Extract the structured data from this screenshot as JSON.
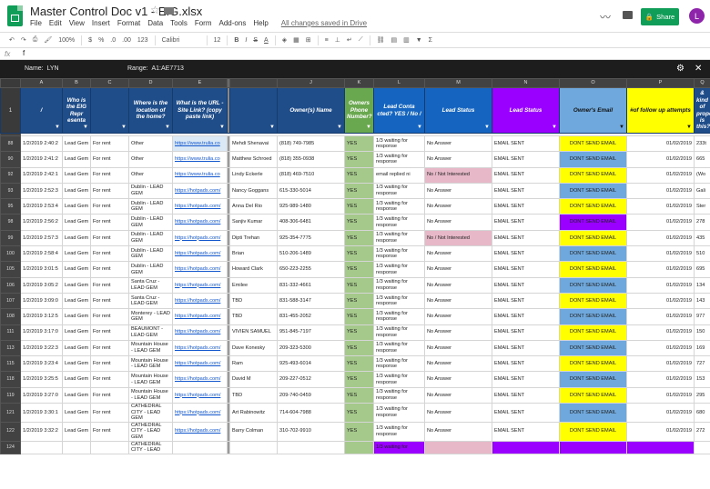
{
  "app": {
    "doc_title": "Master Control Doc v1 - EIG.xlsx",
    "menus": [
      "File",
      "Edit",
      "View",
      "Insert",
      "Format",
      "Data",
      "Tools",
      "Form",
      "Add-ons",
      "Help"
    ],
    "saved_status": "All changes saved in Drive",
    "share_label": "Share",
    "avatar_letter": "L",
    "brand_color": "#0f9d58"
  },
  "toolbar": {
    "zoom": "100%",
    "currency": "$",
    "percent": "%",
    "decimals_dec": ".0",
    "decimals_inc": ".00",
    "number_format": "123",
    "font": "Calibri",
    "font_size": "12",
    "bold": "B",
    "italic": "I",
    "strike": "S",
    "text_color": "A",
    "sum": "Σ"
  },
  "formula_bar": {
    "label": "fx",
    "value": "f"
  },
  "filter_bar": {
    "name_label": "Name:",
    "name_value": "LYN",
    "range_label": "Range:",
    "range_value": "A1:AE7713"
  },
  "columns": [
    "A",
    "B",
    "C",
    "D",
    "E",
    "",
    "J",
    "K",
    "L",
    "M",
    "N",
    "O",
    "P",
    "Q",
    ""
  ],
  "header_row": {
    "row_number": "1",
    "cells": [
      "/",
      "Who is the EIG Repr esenta",
      "",
      "Where is the location of the home?",
      "What is the URL - Site Link? (copy paste link)",
      "",
      "Owner(s) Name",
      "Owners Phone Number?",
      "Lead Conta cted? YES / No /",
      "Lead Status",
      "Lead Status",
      "Owner's Email",
      "#of follow up attempts",
      "& kind of property is this?",
      ""
    ]
  },
  "rows": [
    {
      "n": "88",
      "a": "1/2/2019 2:40:2",
      "b": "Lead Gem",
      "c": "For rent",
      "d": "Other",
      "e": "https://www.trulia.co",
      "j": "Mehdi Shenavai",
      "k": "(818) 749-7985",
      "l": "YES",
      "m": "1/3 waiting for response",
      "n2": "No Answer",
      "o": "EMAIL SENT",
      "p": "DONT SEND EMAIL",
      "q": "01/02/2019",
      "r": "233t"
    },
    {
      "n": "90",
      "a": "1/2/2019 2:41:2",
      "b": "Lead Gem",
      "c": "For rent",
      "d": "Other",
      "e": "https://www.trulia.co",
      "j": "Matthew Schroed",
      "k": "(818) 355-0938",
      "l": "YES",
      "m": "1/3 waiting for response",
      "n2": "No Answer",
      "o": "EMAIL SENT",
      "p": "DONT SEND EMAIL",
      "q": "01/02/2019",
      "r": "665"
    },
    {
      "n": "92",
      "a": "1/2/2019 2:42:1",
      "b": "Lead Gem",
      "c": "For rent",
      "d": "Other",
      "e": "https://www.trulia.co",
      "j": "Lindy Eckerle",
      "k": "(818) 469-7510",
      "l": "YES",
      "m": "email replied ni",
      "n2": "No / Not Interested",
      "o": "EMAIL SENT",
      "p": "DONT SEND EMAIL",
      "q": "01/02/2019",
      "r": "(Wo"
    },
    {
      "n": "93",
      "a": "1/2/2019 2:52:3",
      "b": "Lead Gem",
      "c": "For rent",
      "d": "Dublin - LEAD GEM",
      "e": "https://hotpads.com/",
      "j": "Nancy Goggans",
      "k": "615-330-5014",
      "l": "YES",
      "m": "1/3 waiting for response",
      "n2": "No Answer",
      "o": "EMAIL SENT",
      "p": "DONT SEND EMAIL",
      "q": "01/02/2019",
      "r": "Gali"
    },
    {
      "n": "95",
      "a": "1/2/2019 2:53:4",
      "b": "Lead Gem",
      "c": "For rent",
      "d": "Dublin - LEAD GEM",
      "e": "https://hotpads.com/",
      "j": "Anna Del Rio",
      "k": "925-989-1480",
      "l": "YES",
      "m": "1/3 waiting for response",
      "n2": "No Answer",
      "o": "EMAIL SENT",
      "p": "DONT SEND EMAIL",
      "q": "01/02/2019",
      "r": "Ster"
    },
    {
      "n": "98",
      "a": "1/2/2019 2:56:2",
      "b": "Lead Gem",
      "c": "For rent",
      "d": "Dublin - LEAD GEM",
      "e": "https://hotpads.com/",
      "j": "Sanjiv Kumar",
      "k": "408-306-6481",
      "l": "YES",
      "m": "1/3 waiting for response",
      "n2": "No Answer",
      "o": "EMAIL SENT",
      "p": "DONT SEND EMAIL",
      "q": "01/02/2019",
      "r": "278"
    },
    {
      "n": "99",
      "a": "1/2/2019 2:57:3",
      "b": "Lead Gem",
      "c": "For rent",
      "d": "Dublin - LEAD GEM",
      "e": "https://hotpads.com/",
      "j": "Dipti Trehan",
      "k": "925-354-7775",
      "l": "YES",
      "m": "1/3 waiting for response",
      "n2": "No / Not Interested",
      "o": "EMAIL SENT",
      "p": "DONT SEND EMAIL",
      "q": "01/02/2019",
      "r": "435"
    },
    {
      "n": "100",
      "a": "1/2/2019 2:58:4",
      "b": "Lead Gem",
      "c": "For rent",
      "d": "Dublin - LEAD GEM",
      "e": "https://hotpads.com/",
      "j": "Brian",
      "k": "510-206-1489",
      "l": "YES",
      "m": "1/3 waiting for response",
      "n2": "No Answer",
      "o": "EMAIL SENT",
      "p": "DONT SEND EMAIL",
      "q": "01/02/2019",
      "r": "510"
    },
    {
      "n": "105",
      "a": "1/2/2019 3:01:5",
      "b": "Lead Gem",
      "c": "For rent",
      "d": "Dublin - LEAD GEM",
      "e": "https://hotpads.com/",
      "j": "Howard Clark",
      "k": "650-223-2255",
      "l": "YES",
      "m": "1/3 waiting for response",
      "n2": "No Answer",
      "o": "EMAIL SENT",
      "p": "DONT SEND EMAIL",
      "q": "01/02/2019",
      "r": "695"
    },
    {
      "n": "106",
      "a": "1/2/2019 3:05:2",
      "b": "Lead Gem",
      "c": "For rent",
      "d": "Santa Cruz - LEAD GEM",
      "e": "https://hotpads.com/",
      "j": "Emilee",
      "k": "831-332-4661",
      "l": "YES",
      "m": "1/3 waiting for response",
      "n2": "No Answer",
      "o": "EMAIL SENT",
      "p": "DONT SEND EMAIL",
      "q": "01/02/2019",
      "r": "134"
    },
    {
      "n": "107",
      "a": "1/2/2019 3:09:0",
      "b": "Lead Gem",
      "c": "For rent",
      "d": "Santa Cruz - LEAD GEM",
      "e": "https://hotpads.com/",
      "j": "TBD",
      "k": "831-588-3147",
      "l": "YES",
      "m": "1/3 waiting for response",
      "n2": "No Answer",
      "o": "EMAIL SENT",
      "p": "DONT SEND EMAIL",
      "q": "01/02/2019",
      "r": "143"
    },
    {
      "n": "108",
      "a": "1/2/2019 3:12:5",
      "b": "Lead Gem",
      "c": "For rent",
      "d": "Monterey - LEAD GEM",
      "e": "https://hotpads.com/",
      "j": "TBD",
      "k": "831-455-2052",
      "l": "YES",
      "m": "1/3 waiting for response",
      "n2": "No Answer",
      "o": "EMAIL SENT",
      "p": "DONT SEND EMAIL",
      "q": "01/02/2019",
      "r": "977"
    },
    {
      "n": "111",
      "a": "1/2/2019 3:17:0",
      "b": "Lead Gem",
      "c": "For rent",
      "d": "BEAUMONT - LEAD GEM",
      "e": "https://hotpads.com/",
      "j": "VIVIEN SAMUEL",
      "k": "951-845-7197",
      "l": "YES",
      "m": "1/3 waiting for response",
      "n2": "No Answer",
      "o": "EMAIL SENT",
      "p": "DONT SEND EMAIL",
      "q": "01/02/2019",
      "r": "150"
    },
    {
      "n": "113",
      "a": "1/2/2019 3:22:3",
      "b": "Lead Gem",
      "c": "For rent",
      "d": "Mountain House - LEAD GEM",
      "e": "https://hotpads.com/",
      "j": "Dave Konesky",
      "k": "209-323-5300",
      "l": "YES",
      "m": "1/3 waiting for response",
      "n2": "No Answer",
      "o": "EMAIL SENT",
      "p": "DONT SEND EMAIL",
      "q": "01/02/2019",
      "r": "169"
    },
    {
      "n": "115",
      "a": "1/2/2019 3:23:4",
      "b": "Lead Gem",
      "c": "For rent",
      "d": "Mountain House - LEAD GEM",
      "e": "https://hotpads.com/",
      "j": "Ram",
      "k": "925-493-6014",
      "l": "YES",
      "m": "1/3 waiting for response",
      "n2": "No Answer",
      "o": "EMAIL SENT",
      "p": "DONT SEND EMAIL",
      "q": "01/02/2019",
      "r": "727"
    },
    {
      "n": "118",
      "a": "1/2/2019 3:25:5",
      "b": "Lead Gem",
      "c": "For rent",
      "d": "Mountain House - LEAD GEM",
      "e": "https://hotpads.com/",
      "j": "David M",
      "k": "209-227-0512",
      "l": "YES",
      "m": "1/3 waiting for response",
      "n2": "No Answer",
      "o": "EMAIL SENT",
      "p": "DONT SEND EMAIL",
      "q": "01/02/2019",
      "r": "153"
    },
    {
      "n": "119",
      "a": "1/2/2019 3:27:0",
      "b": "Lead Gem",
      "c": "For rent",
      "d": "Mountain House - LEAD GEM",
      "e": "https://hotpads.com/",
      "j": "TBD",
      "k": "209-740-0459",
      "l": "YES",
      "m": "1/3 waiting for response",
      "n2": "No Answer",
      "o": "EMAIL SENT",
      "p": "DONT SEND EMAIL",
      "q": "01/02/2019",
      "r": "295"
    },
    {
      "n": "121",
      "a": "1/2/2019 3:30:1",
      "b": "Lead Gem",
      "c": "For rent",
      "d": "CATHEDRAL CITY - LEAD GEM",
      "e": "https://hotpads.com/",
      "j": "Art Rabinowitz",
      "k": "714-604-7988",
      "l": "YES",
      "m": "1/3 waiting for response",
      "n2": "No Answer",
      "o": "EMAIL SENT",
      "p": "DONT SEND EMAIL",
      "q": "01/02/2019",
      "r": "680"
    },
    {
      "n": "122",
      "a": "1/2/2019 3:32:2",
      "b": "Lead Gem",
      "c": "For rent",
      "d": "CATHEDRAL CITY - LEAD GEM",
      "e": "https://hotpads.com/",
      "j": "Barry Colman",
      "k": "310-702-9910",
      "l": "YES",
      "m": "1/3 waiting for response",
      "n2": "No Answer",
      "o": "EMAIL SENT",
      "p": "DONT SEND EMAIL",
      "q": "01/02/2019",
      "r": "272"
    },
    {
      "n": "124",
      "a": "",
      "b": "",
      "c": "",
      "d": "CATHEDRAL CITY - LEAD",
      "e": "",
      "j": "",
      "k": "",
      "l": "",
      "m": "1/3 waiting for",
      "n2": "",
      "o": "",
      "p": "",
      "q": "",
      "r": ""
    }
  ],
  "colors": {
    "header_blue": "#1f4d8a",
    "lead_contacted_green": "#a5c98b",
    "purple": "#9900ff",
    "yellow": "#ffff00",
    "light_blue": "#6fa8dc",
    "pink": "#e6b8c8",
    "filter_bar": "#1d1d1d"
  }
}
